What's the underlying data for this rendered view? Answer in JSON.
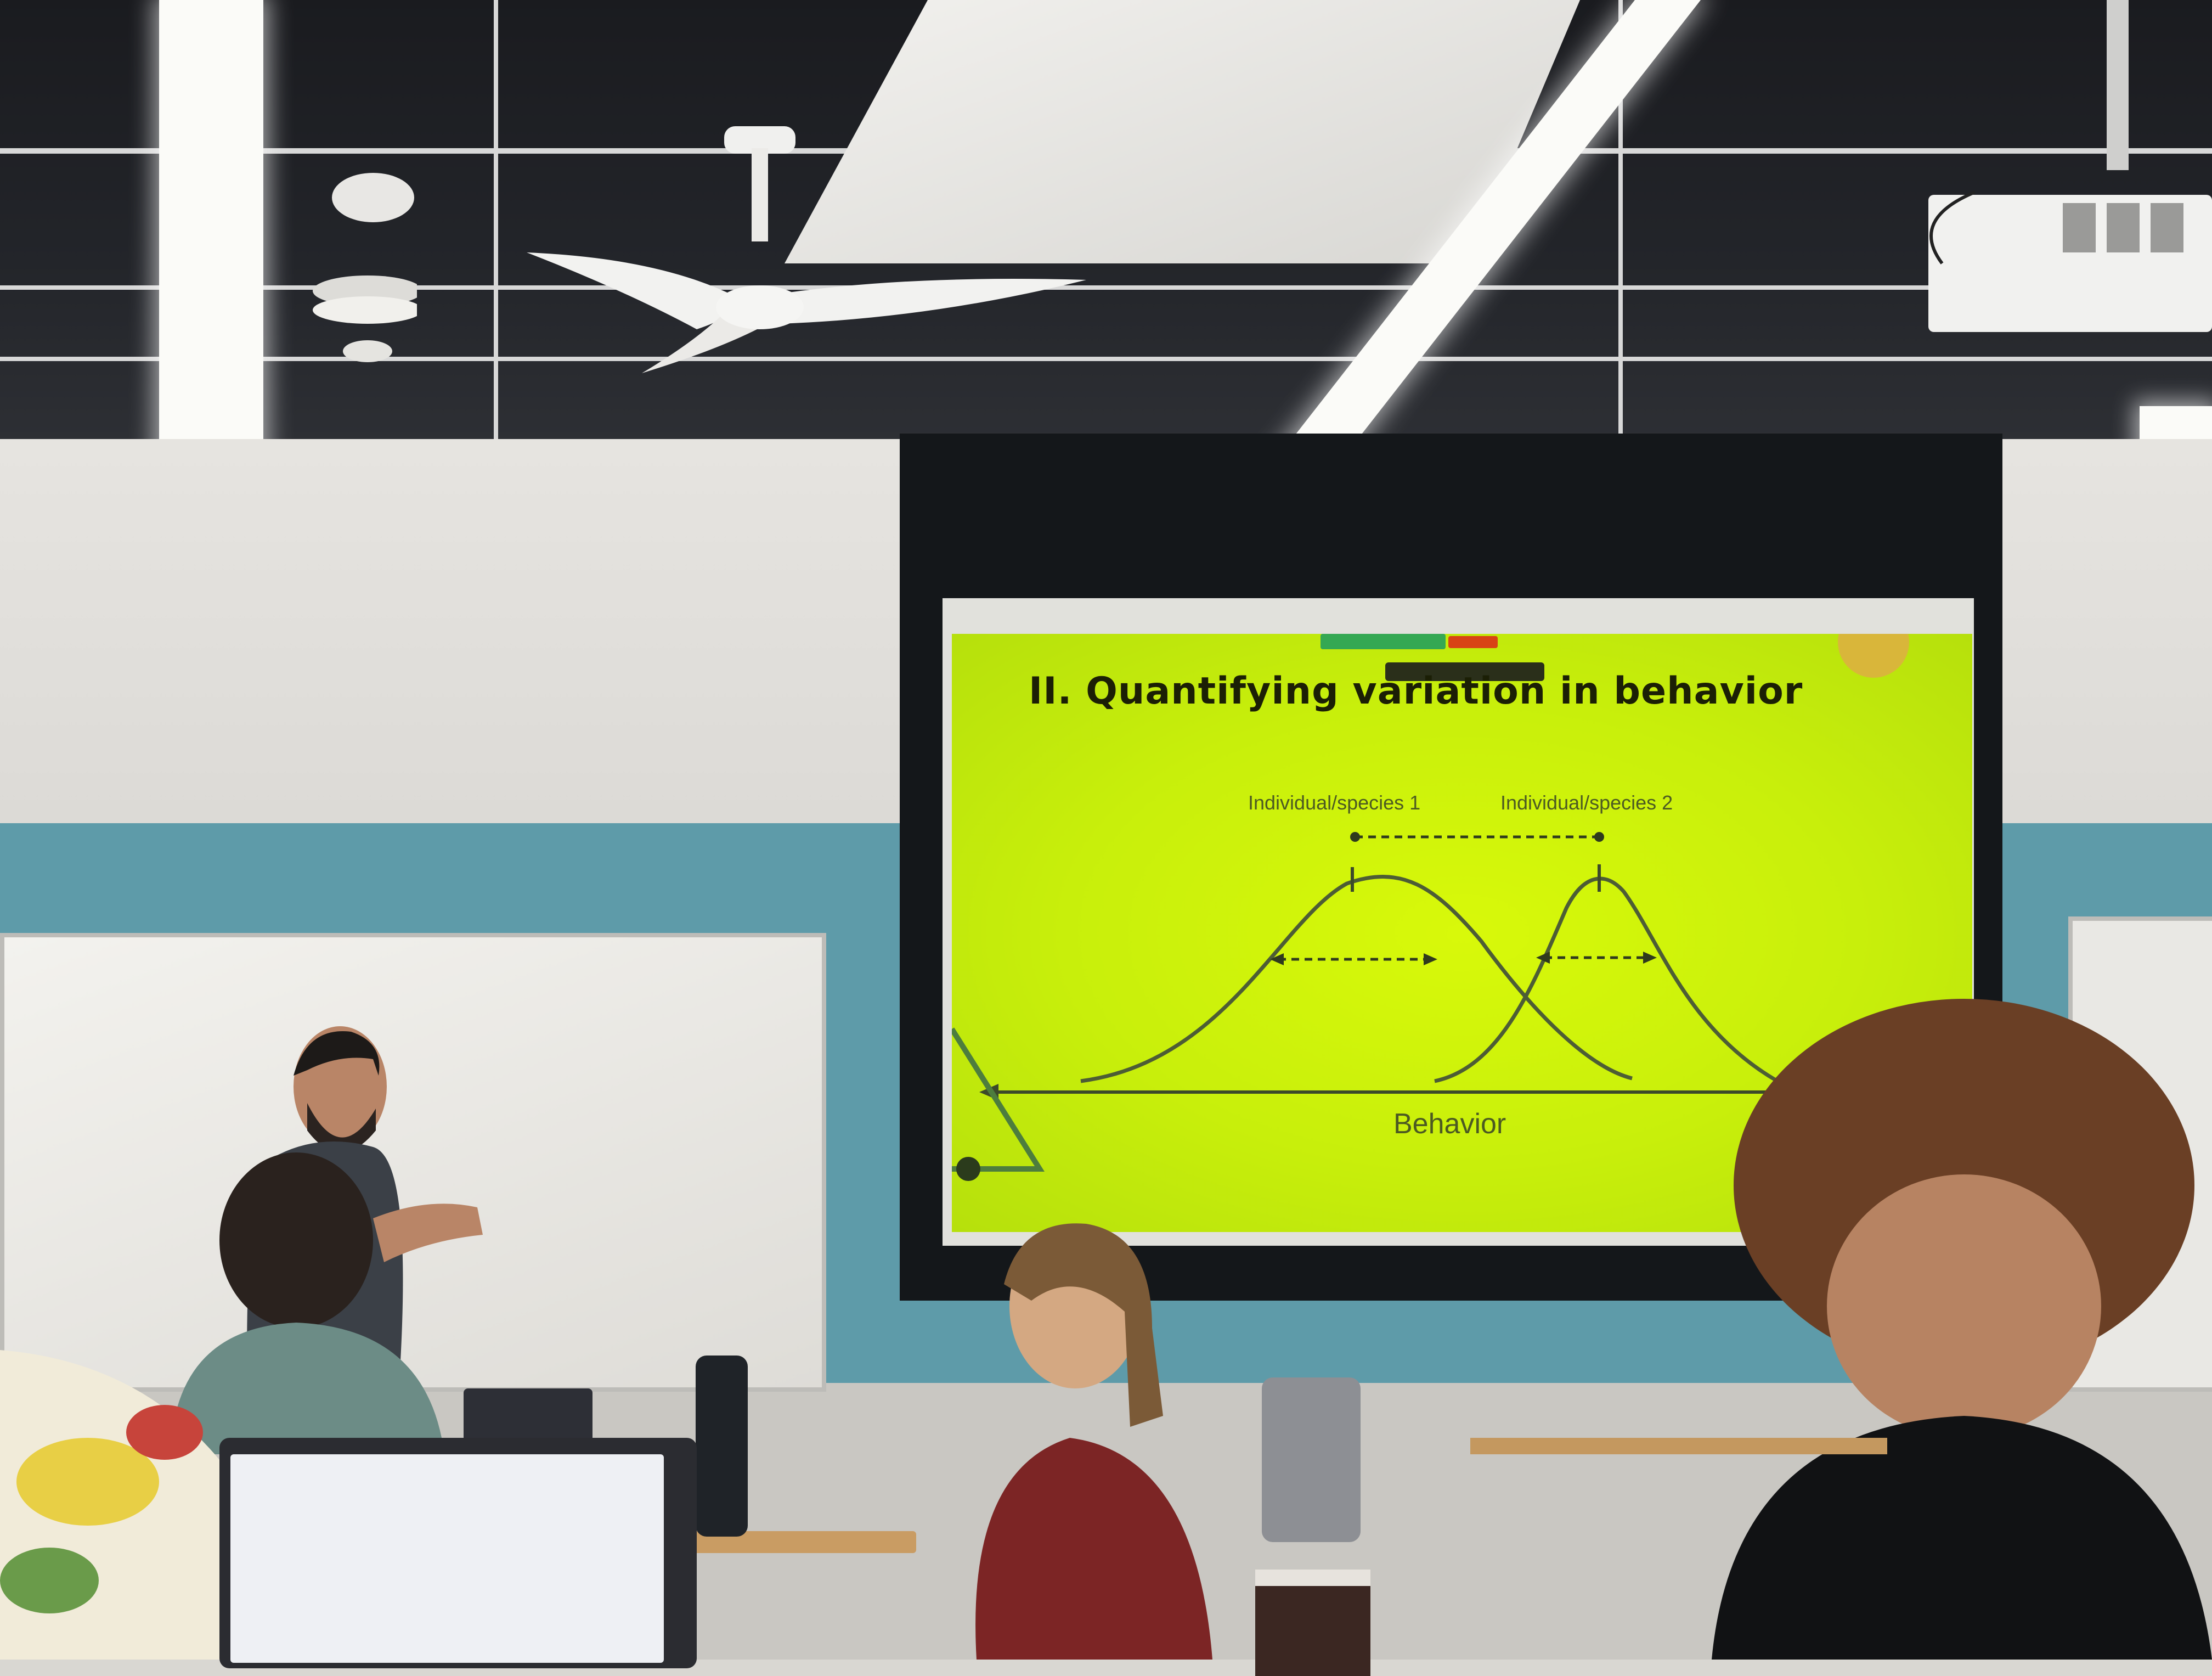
{
  "scene": {
    "description_colors": {
      "slide_background": "#c8ef0b",
      "slide_text": "#1b1f05",
      "wall_teal": "#5e9ba9"
    }
  },
  "slide": {
    "title": "II. Quantifying variation in behavior",
    "curve1_label": "Individual/species 1",
    "curve2_label": "Individual/species 2",
    "axis_label": "Behavior"
  }
}
